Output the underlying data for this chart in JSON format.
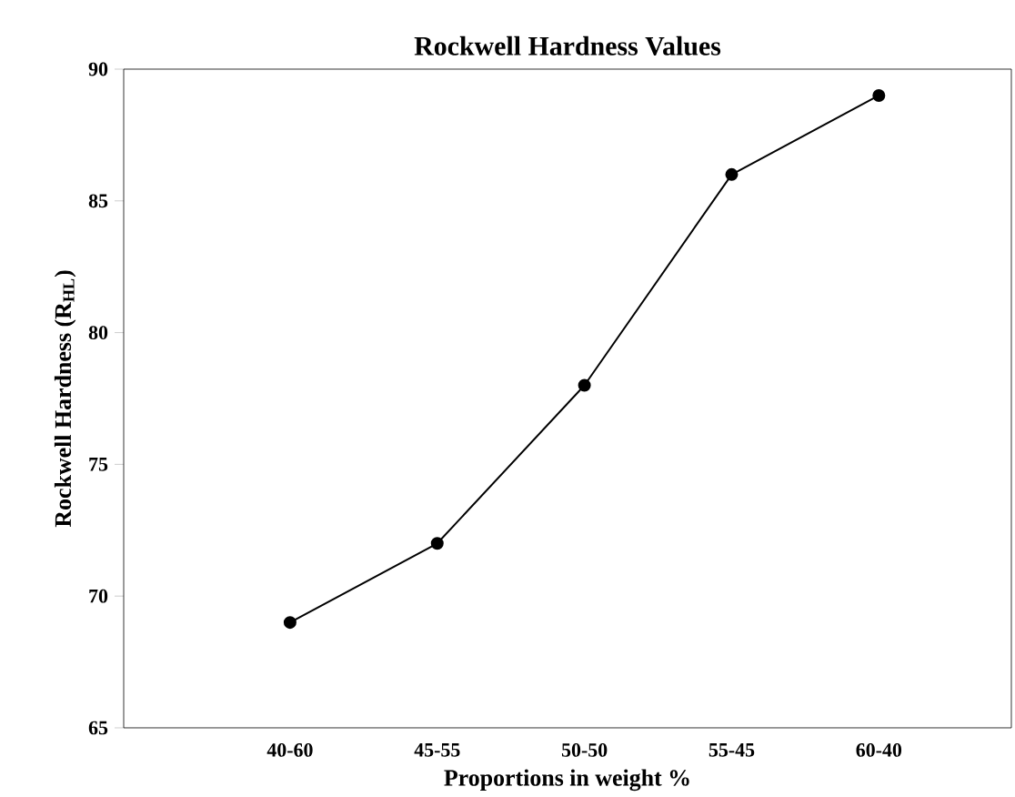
{
  "chart_data": {
    "type": "line",
    "title": "Rockwell Hardness Values",
    "xlabel": "Proportions in weight %",
    "ylabel": "Rockwell Hardness (R$_{HL}$)",
    "categories": [
      "40-60",
      "45-55",
      "50-50",
      "55-45",
      "60-40"
    ],
    "series": [
      {
        "color": "#000000",
        "values": [
          69,
          72,
          78,
          86,
          89
        ]
      }
    ],
    "ylim": [
      65,
      90
    ],
    "yticks": [
      65,
      70,
      75,
      80,
      85,
      90
    ],
    "marker": "circle",
    "line_style": "solid",
    "grid": false
  }
}
